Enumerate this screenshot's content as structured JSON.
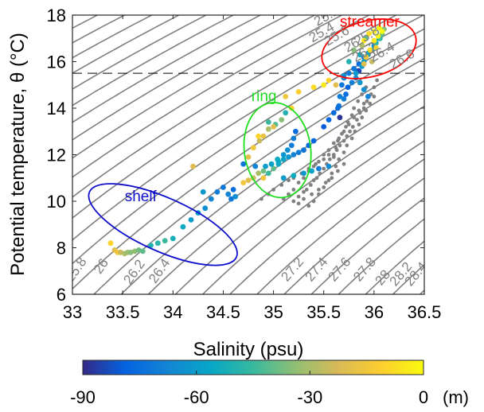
{
  "chart_data": {
    "type": "scatter",
    "xlabel": "Salinity (psu)",
    "ylabel": "Potential temperature, θ (°C)",
    "xlim": [
      33,
      36.5
    ],
    "ylim": [
      6,
      18
    ],
    "x_ticks": [
      "33",
      "33.5",
      "34",
      "34.5",
      "35",
      "35.5",
      "36",
      "36.5"
    ],
    "y_ticks": [
      "6",
      "8",
      "10",
      "12",
      "14",
      "16",
      "18"
    ],
    "grid": false,
    "reference_line": {
      "y": 15.5,
      "style": "dashed"
    },
    "isopycnals": [
      {
        "label": "25.2",
        "lx": 35.55,
        "ly": 17.8,
        "rot": 30
      },
      {
        "label": "25.4",
        "lx": 35.5,
        "ly": 17.1,
        "rot": 30
      },
      {
        "label": "25.6",
        "lx": 35.65,
        "ly": 16.95,
        "rot": 30
      },
      {
        "label": "25.8",
        "lx": 35.95,
        "ly": 16.95,
        "rot": 30
      },
      {
        "label": "26",
        "lx": 35.8,
        "ly": 16.55,
        "rot": 30
      },
      {
        "label": "26.2",
        "lx": 35.93,
        "ly": 16.25,
        "rot": 30
      },
      {
        "label": "26.4",
        "lx": 36.1,
        "ly": 16.25,
        "rot": 30
      },
      {
        "label": "26.6",
        "lx": 36.3,
        "ly": 15.95,
        "rot": 30
      },
      {
        "label": "25.8",
        "lx": 33.07,
        "ly": 6.95,
        "rot": 55
      },
      {
        "label": "26",
        "lx": 33.32,
        "ly": 7.1,
        "rot": 55
      },
      {
        "label": "26.2",
        "lx": 33.65,
        "ly": 6.85,
        "rot": 55
      },
      {
        "label": "26.4",
        "lx": 33.9,
        "ly": 6.9,
        "rot": 55
      },
      {
        "label": "27.2",
        "lx": 35.22,
        "ly": 6.95,
        "rot": 50
      },
      {
        "label": "27.4",
        "lx": 35.46,
        "ly": 6.95,
        "rot": 50
      },
      {
        "label": "27.6",
        "lx": 35.69,
        "ly": 6.95,
        "rot": 50
      },
      {
        "label": "27.8",
        "lx": 35.94,
        "ly": 6.95,
        "rot": 50
      },
      {
        "label": "28",
        "lx": 36.12,
        "ly": 6.6,
        "rot": 50
      },
      {
        "label": "28.2",
        "lx": 36.3,
        "ly": 6.75,
        "rot": 50
      },
      {
        "label": "28.4",
        "lx": 36.45,
        "ly": 6.75,
        "rot": 50
      }
    ],
    "annotations": [
      {
        "text": "streamer",
        "color": "#ff0000",
        "x": 35.66,
        "y": 17.5
      },
      {
        "text": "ring",
        "color": "#20dd20",
        "x": 34.78,
        "y": 14.3
      },
      {
        "text": "shelf",
        "color": "#1010cc",
        "x": 33.52,
        "y": 10.0
      }
    ],
    "ellipses": [
      {
        "name": "streamer",
        "color": "#ff0000",
        "cx": 35.95,
        "cy": 16.55,
        "rx": 0.48,
        "ry": 1.2,
        "rot": 15
      },
      {
        "name": "ring",
        "color": "#20dd20",
        "cx": 35.04,
        "cy": 12.2,
        "rx": 0.33,
        "ry": 2.05,
        "rot": 8
      },
      {
        "name": "shelf",
        "color": "#1010cc",
        "cx": 33.9,
        "cy": 9.0,
        "rx": 0.8,
        "ry": 1.15,
        "rot": -24
      }
    ],
    "colorbar": {
      "label": "(m)",
      "min": -90,
      "max": 0,
      "ticks": [
        "-90",
        "-60",
        "-30",
        "0"
      ],
      "colormap": [
        "#352a87",
        "#0363e1",
        "#1485d4",
        "#06a7c6",
        "#38b99e",
        "#92bf73",
        "#d9ba56",
        "#fcce2e",
        "#f9fb0e"
      ]
    },
    "series": [
      {
        "kind": "background",
        "color": "#808080",
        "points": [
          [
            35.2,
            10.0
          ],
          [
            35.25,
            10.2
          ],
          [
            35.3,
            10.4
          ],
          [
            35.33,
            10.5
          ],
          [
            35.37,
            10.7
          ],
          [
            35.4,
            10.9
          ],
          [
            35.43,
            11.0
          ],
          [
            35.46,
            11.2
          ],
          [
            35.5,
            11.4
          ],
          [
            35.53,
            11.6
          ],
          [
            35.56,
            11.8
          ],
          [
            35.6,
            12.0
          ],
          [
            35.63,
            12.2
          ],
          [
            35.66,
            12.4
          ],
          [
            35.7,
            12.6
          ],
          [
            35.73,
            12.8
          ],
          [
            35.76,
            13.0
          ],
          [
            35.79,
            13.2
          ],
          [
            35.83,
            13.5
          ],
          [
            35.86,
            13.8
          ],
          [
            35.9,
            14.0
          ],
          [
            35.93,
            14.3
          ],
          [
            35.97,
            14.6
          ],
          [
            36.0,
            14.9
          ],
          [
            36.03,
            15.2
          ],
          [
            35.1,
            10.1
          ],
          [
            35.15,
            10.3
          ],
          [
            35.2,
            10.5
          ],
          [
            35.25,
            10.8
          ],
          [
            35.3,
            11.0
          ],
          [
            35.35,
            11.3
          ],
          [
            35.4,
            11.5
          ],
          [
            35.45,
            11.7
          ],
          [
            35.5,
            12.0
          ],
          [
            35.55,
            12.2
          ],
          [
            35.6,
            12.5
          ],
          [
            35.65,
            12.7
          ],
          [
            35.7,
            13.0
          ],
          [
            35.75,
            13.3
          ],
          [
            35.8,
            13.6
          ],
          [
            35.85,
            13.9
          ],
          [
            35.9,
            14.2
          ],
          [
            35.95,
            14.5
          ],
          [
            34.88,
            10.1
          ],
          [
            34.95,
            10.3
          ],
          [
            35.0,
            10.5
          ],
          [
            35.08,
            10.7
          ],
          [
            35.15,
            10.9
          ],
          [
            35.2,
            11.0
          ],
          [
            35.28,
            11.2
          ],
          [
            35.35,
            11.4
          ],
          [
            35.42,
            11.6
          ],
          [
            35.5,
            11.8
          ],
          [
            35.55,
            12.0
          ],
          [
            35.6,
            11.9
          ],
          [
            35.62,
            12.3
          ],
          [
            35.64,
            12.6
          ],
          [
            35.68,
            12.9
          ],
          [
            35.72,
            13.2
          ],
          [
            35.74,
            13.4
          ],
          [
            35.78,
            13.7
          ],
          [
            35.8,
            14.0
          ],
          [
            35.84,
            14.3
          ],
          [
            35.88,
            14.6
          ],
          [
            35.92,
            14.9
          ],
          [
            35.35,
            9.8
          ],
          [
            35.4,
            10.0
          ],
          [
            35.45,
            10.3
          ],
          [
            35.5,
            10.6
          ],
          [
            35.55,
            10.9
          ],
          [
            35.58,
            11.2
          ],
          [
            35.62,
            11.5
          ],
          [
            35.65,
            11.8
          ],
          [
            35.7,
            12.1
          ],
          [
            35.73,
            12.4
          ],
          [
            35.78,
            12.7
          ],
          [
            35.81,
            13.0
          ],
          [
            35.85,
            13.3
          ],
          [
            35.88,
            13.6
          ],
          [
            35.92,
            13.9
          ],
          [
            35.96,
            14.2
          ],
          [
            36.0,
            14.5
          ],
          [
            35.25,
            9.9
          ],
          [
            35.3,
            10.1
          ],
          [
            35.38,
            10.3
          ],
          [
            35.45,
            10.5
          ],
          [
            35.52,
            10.8
          ],
          [
            35.58,
            11.0
          ],
          [
            35.64,
            11.3
          ],
          [
            35.7,
            11.6
          ]
        ]
      },
      {
        "kind": "depth",
        "name": "stations",
        "x": [
          33.38,
          33.42,
          33.45,
          33.48,
          33.52,
          33.55,
          33.58,
          33.62,
          33.66,
          33.7,
          33.78,
          33.85,
          33.92,
          34.0,
          34.1,
          34.18,
          34.25,
          34.32,
          34.38,
          34.3,
          34.2,
          34.44,
          34.5,
          34.55,
          34.6,
          34.58,
          34.62,
          34.7,
          34.75,
          34.8,
          34.85,
          34.9,
          34.95,
          35.0,
          35.05,
          35.1,
          35.15,
          35.2,
          35.25,
          35.3,
          35.35,
          35.4,
          34.75,
          34.8,
          34.86,
          34.9,
          34.95,
          35.02,
          35.08,
          35.12,
          35.18,
          34.92,
          34.98,
          35.04,
          35.1,
          35.14,
          35.18,
          35.2,
          35.22,
          34.95,
          34.9,
          35.05,
          34.82,
          34.7,
          34.85,
          35.0,
          35.12,
          35.25,
          35.4,
          35.5,
          35.55,
          35.62,
          35.7,
          35.75,
          35.8,
          35.85,
          35.9,
          35.95,
          36.0,
          36.05,
          35.5,
          35.55,
          35.6,
          35.65,
          35.7,
          35.72,
          35.74,
          35.78,
          35.82,
          35.84,
          35.88,
          35.9,
          35.94,
          35.98,
          36.02,
          36.06,
          36.08,
          36.1,
          35.85,
          35.9,
          35.92,
          35.96,
          36.0,
          36.04,
          36.08,
          35.98,
          36.02,
          35.92,
          35.88,
          35.86,
          35.8,
          35.75,
          35.82,
          35.86,
          35.9,
          35.94,
          35.9,
          35.95,
          36.0,
          36.05,
          35.64,
          35.66,
          35.68,
          35.7,
          35.66,
          35.1,
          35.2,
          35.3,
          35.38,
          35.45,
          35.55
        ],
        "y": [
          8.2,
          7.9,
          7.8,
          7.8,
          7.75,
          7.8,
          7.8,
          7.85,
          7.9,
          7.85,
          8.1,
          8.2,
          8.3,
          8.4,
          8.9,
          9.2,
          9.5,
          9.7,
          10.1,
          10.4,
          11.5,
          10.4,
          10.6,
          10.3,
          10.5,
          10.1,
          10.2,
          10.8,
          10.9,
          11.0,
          11.2,
          11.3,
          11.2,
          11.4,
          11.6,
          11.8,
          11.9,
          12.0,
          12.1,
          12.2,
          12.4,
          12.6,
          11.9,
          12.3,
          12.6,
          12.8,
          13.1,
          13.3,
          13.5,
          13.8,
          14.0,
          11.5,
          11.6,
          11.8,
          12.0,
          12.2,
          12.4,
          12.7,
          13.0,
          13.4,
          11.0,
          11.7,
          11.5,
          11.6,
          12.8,
          13.2,
          14.5,
          14.7,
          14.9,
          15.0,
          15.2,
          15.0,
          15.4,
          15.5,
          15.7,
          15.9,
          16.2,
          16.4,
          16.7,
          17.0,
          13.2,
          13.5,
          13.8,
          14.1,
          14.4,
          14.6,
          14.9,
          15.1,
          15.3,
          15.6,
          15.8,
          16.0,
          16.3,
          16.5,
          16.8,
          17.0,
          17.2,
          17.4,
          15.6,
          15.9,
          16.2,
          16.5,
          16.9,
          17.1,
          17.3,
          16.0,
          16.6,
          17.0,
          16.7,
          16.3,
          16.5,
          16.0,
          15.5,
          15.1,
          14.8,
          14.5,
          16.9,
          17.2,
          17.3,
          17.45,
          14.0,
          14.5,
          15.0,
          15.3,
          13.6,
          11.0,
          11.1,
          11.2,
          11.3,
          11.4,
          11.5
        ],
        "depth": [
          -10,
          -20,
          -15,
          -25,
          -30,
          -32,
          -35,
          -34,
          -38,
          -40,
          -50,
          -48,
          -45,
          -52,
          -55,
          -60,
          -62,
          -65,
          -68,
          -62,
          -20,
          -70,
          -72,
          -68,
          -75,
          -72,
          -65,
          -15,
          -20,
          -25,
          -30,
          -38,
          -45,
          -40,
          -55,
          -58,
          -62,
          -68,
          -70,
          -72,
          -75,
          -78,
          -20,
          -15,
          -25,
          -18,
          -30,
          -42,
          -35,
          -50,
          -10,
          -60,
          -58,
          -55,
          -62,
          -65,
          -70,
          -70,
          -75,
          -45,
          -15,
          -55,
          -68,
          -72,
          -10,
          -20,
          -15,
          -12,
          -8,
          -5,
          -10,
          -20,
          -65,
          -70,
          -72,
          -75,
          -70,
          -68,
          -60,
          -55,
          -80,
          -78,
          -75,
          -72,
          -70,
          -75,
          -78,
          -70,
          -68,
          -72,
          -60,
          -58,
          -55,
          -52,
          -50,
          -45,
          -40,
          -35,
          -85,
          -20,
          -15,
          -8,
          -5,
          -2,
          0,
          -25,
          -10,
          -40,
          -30,
          -55,
          -35,
          -50,
          -60,
          -62,
          -65,
          -68,
          -5,
          -8,
          -3,
          0,
          -75,
          -70,
          -72,
          -68,
          -88,
          -60,
          -55,
          -62,
          -58,
          -70,
          -65
        ]
      }
    ]
  }
}
